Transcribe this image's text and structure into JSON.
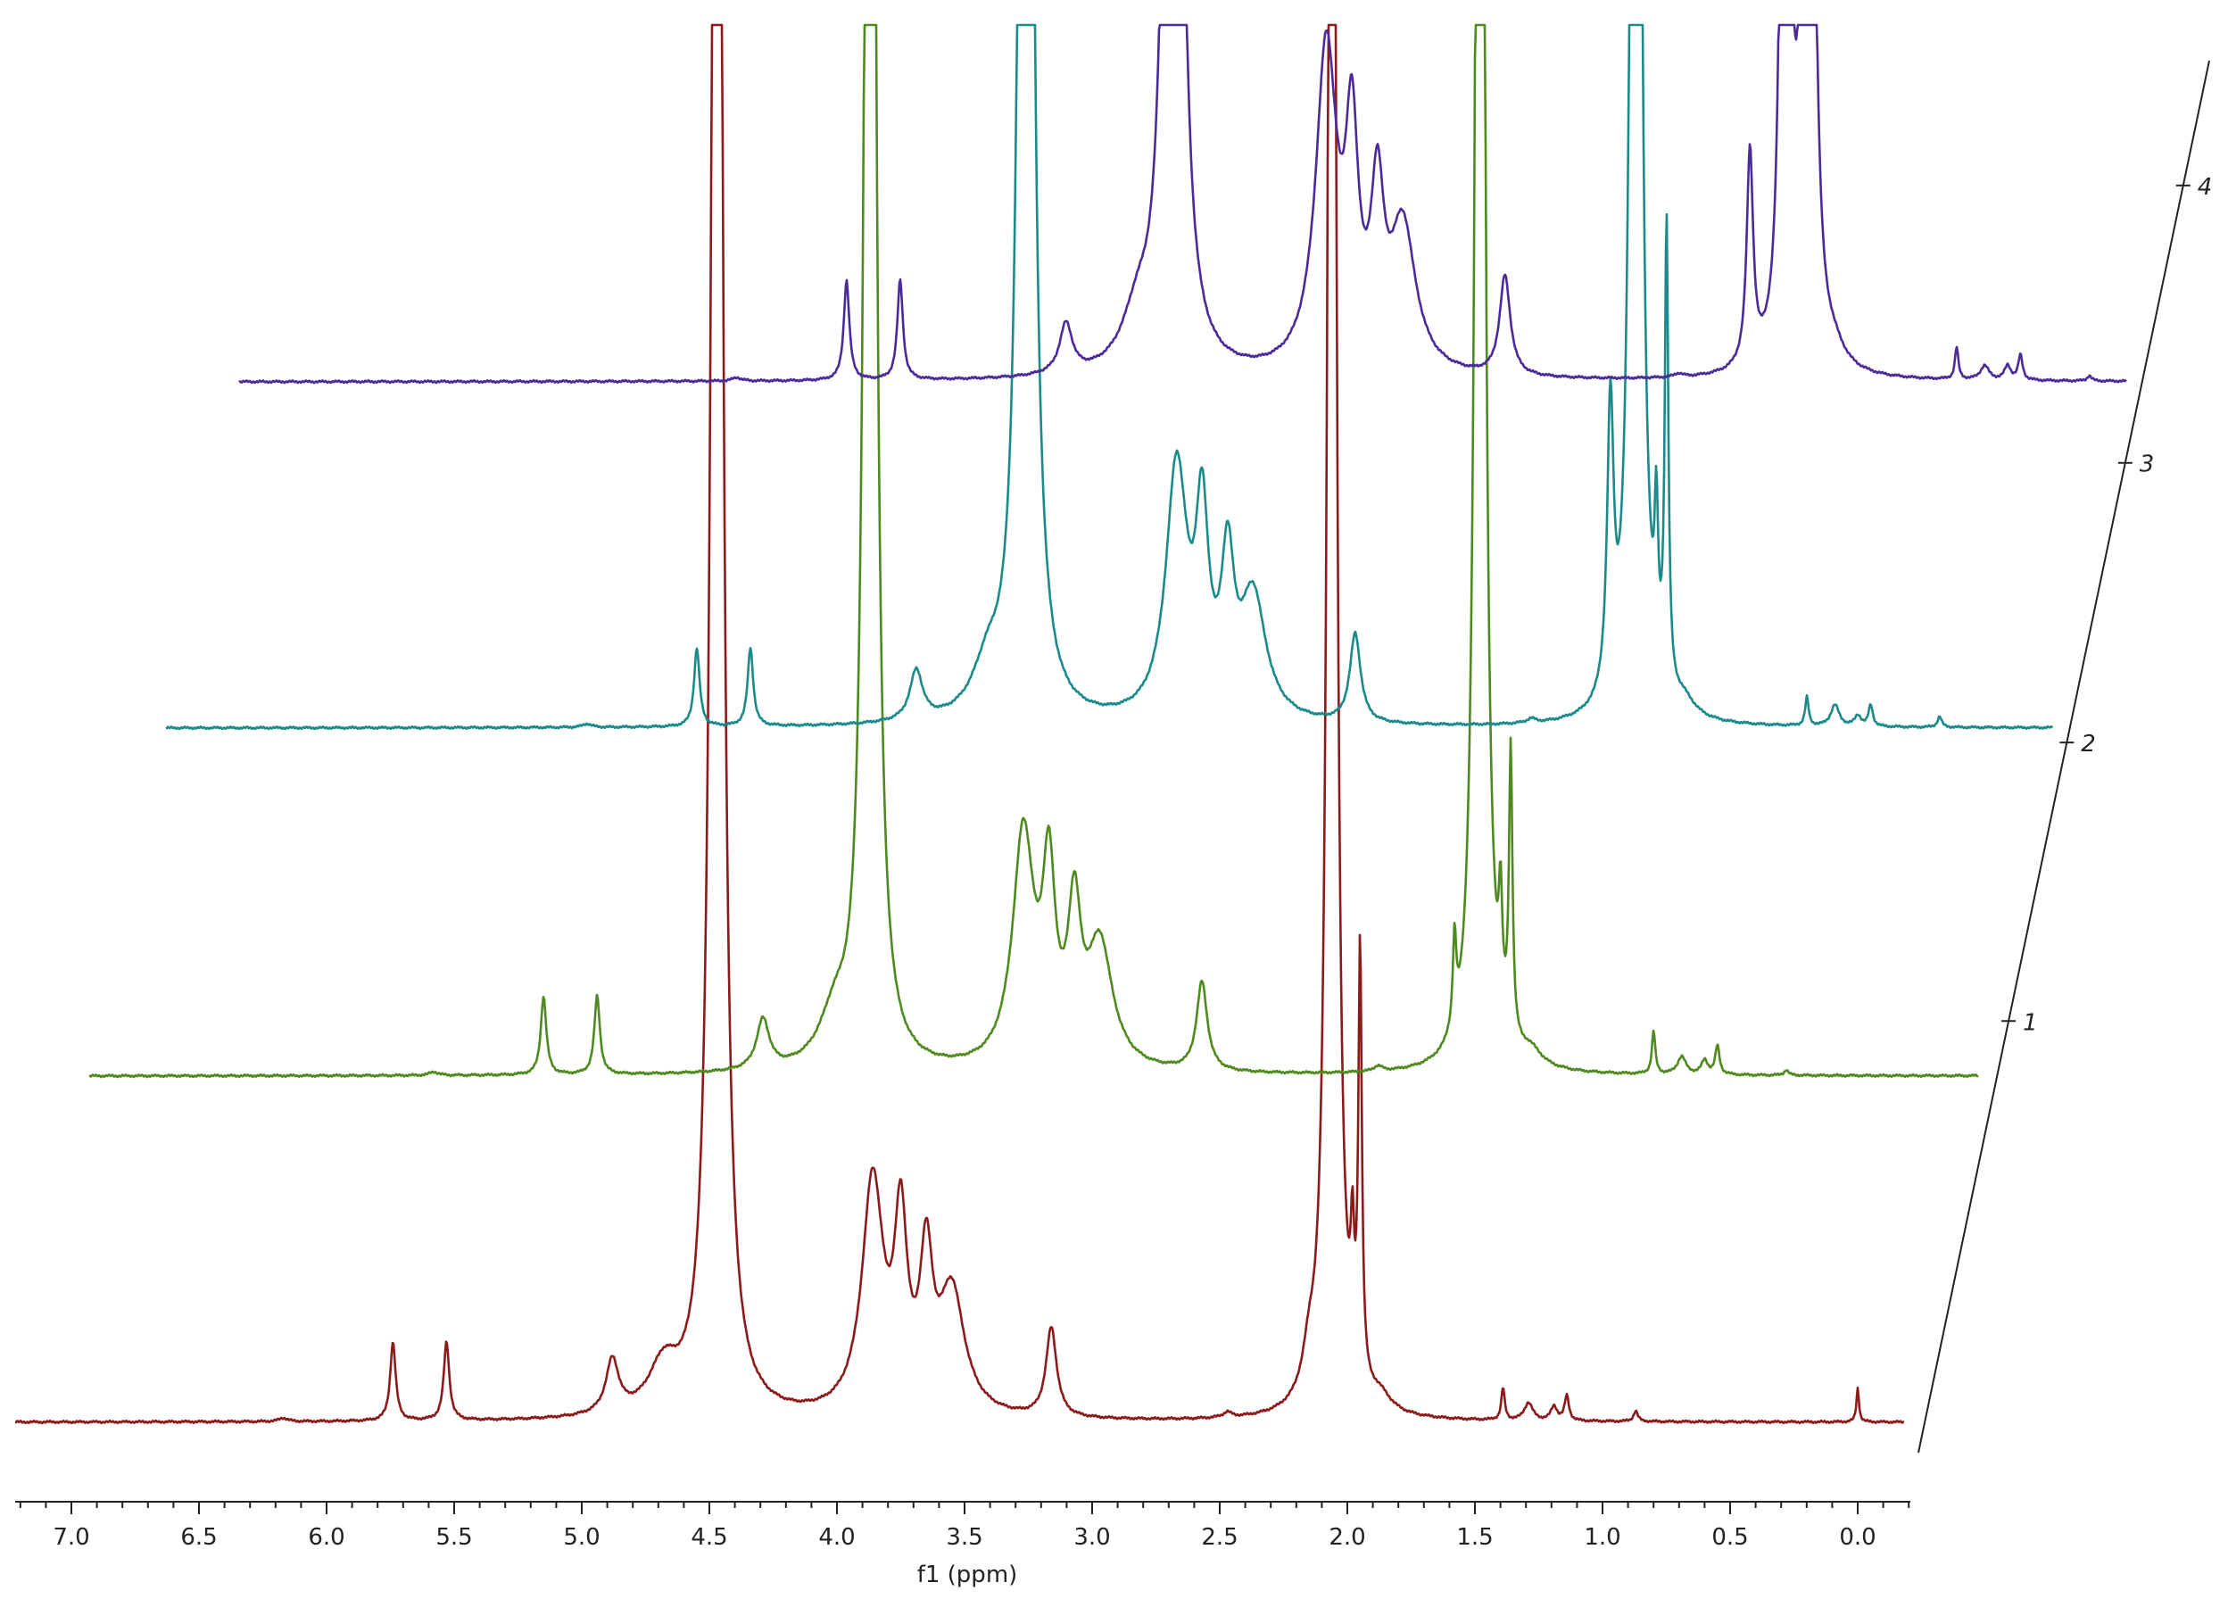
{
  "chart_data": {
    "type": "line",
    "subtype": "stacked-1H-NMR-spectra",
    "xlabel": "f1 (ppm)",
    "x_reversed": true,
    "xlim": [
      7.2,
      -0.2
    ],
    "x_ticks": [
      "7.0",
      "6.5",
      "6.0",
      "5.5",
      "5.0",
      "4.5",
      "4.0",
      "3.5",
      "3.0",
      "2.5",
      "2.0",
      "1.5",
      "1.0",
      "0.5",
      "0.0"
    ],
    "depth_axis_labels": [
      "1",
      "2",
      "3",
      "4"
    ],
    "grid": false,
    "legend": "none",
    "series": [
      {
        "color": "#8B1A1A",
        "peaks": [
          {
            "ppm": 6.17,
            "h": 0.1,
            "w": 0.02
          },
          {
            "ppm": 5.74,
            "h": 2.2,
            "w": 0.013
          },
          {
            "ppm": 5.53,
            "h": 2.2,
            "w": 0.013
          },
          {
            "ppm": 4.88,
            "h": 1.5,
            "w": 0.03
          },
          {
            "ppm": 4.68,
            "h": 1.3,
            "w": 0.07
          },
          {
            "ppm": 4.47,
            "h": 80,
            "w": 0.02
          },
          {
            "ppm": 3.86,
            "h": 6.5,
            "w": 0.05
          },
          {
            "ppm": 3.75,
            "h": 5.0,
            "w": 0.03
          },
          {
            "ppm": 3.65,
            "h": 4.0,
            "w": 0.03
          },
          {
            "ppm": 3.55,
            "h": 3.4,
            "w": 0.06
          },
          {
            "ppm": 3.16,
            "h": 2.5,
            "w": 0.025
          },
          {
            "ppm": 2.47,
            "h": 0.15,
            "w": 0.02
          },
          {
            "ppm": 2.15,
            "h": 1.0,
            "w": 0.03
          },
          {
            "ppm": 2.06,
            "h": 80,
            "w": 0.015
          },
          {
            "ppm": 1.98,
            "h": 3.0,
            "w": 0.008
          },
          {
            "ppm": 1.95,
            "h": 12,
            "w": 0.008
          },
          {
            "ppm": 1.87,
            "h": 0.4,
            "w": 0.05
          },
          {
            "ppm": 1.39,
            "h": 0.9,
            "w": 0.008
          },
          {
            "ppm": 1.29,
            "h": 0.5,
            "w": 0.02
          },
          {
            "ppm": 1.19,
            "h": 0.4,
            "w": 0.015
          },
          {
            "ppm": 1.14,
            "h": 0.7,
            "w": 0.01
          },
          {
            "ppm": 0.87,
            "h": 0.3,
            "w": 0.01
          },
          {
            "ppm": 0.0,
            "h": 0.95,
            "w": 0.006
          }
        ]
      },
      {
        "color": "#4E8A1E",
        "peaks": [
          {
            "ppm": 5.87,
            "h": 0.1,
            "w": 0.02
          },
          {
            "ppm": 5.44,
            "h": 2.2,
            "w": 0.013
          },
          {
            "ppm": 5.23,
            "h": 2.2,
            "w": 0.013
          },
          {
            "ppm": 4.58,
            "h": 1.4,
            "w": 0.03
          },
          {
            "ppm": 4.3,
            "h": 1.3,
            "w": 0.07
          },
          {
            "ppm": 4.16,
            "h": 80,
            "w": 0.018
          },
          {
            "ppm": 3.56,
            "h": 6.5,
            "w": 0.05
          },
          {
            "ppm": 3.46,
            "h": 5.0,
            "w": 0.03
          },
          {
            "ppm": 3.36,
            "h": 4.0,
            "w": 0.03
          },
          {
            "ppm": 3.26,
            "h": 3.4,
            "w": 0.06
          },
          {
            "ppm": 2.86,
            "h": 2.5,
            "w": 0.025
          },
          {
            "ppm": 2.17,
            "h": 0.15,
            "w": 0.02
          },
          {
            "ppm": 1.87,
            "h": 2.5,
            "w": 0.008
          },
          {
            "ppm": 1.77,
            "h": 80,
            "w": 0.015
          },
          {
            "ppm": 1.69,
            "h": 3.0,
            "w": 0.008
          },
          {
            "ppm": 1.65,
            "h": 8,
            "w": 0.008
          },
          {
            "ppm": 1.57,
            "h": 0.4,
            "w": 0.05
          },
          {
            "ppm": 1.09,
            "h": 1.2,
            "w": 0.008
          },
          {
            "ppm": 0.98,
            "h": 0.5,
            "w": 0.02
          },
          {
            "ppm": 0.89,
            "h": 0.4,
            "w": 0.015
          },
          {
            "ppm": 0.84,
            "h": 0.8,
            "w": 0.01
          },
          {
            "ppm": 0.57,
            "h": 0.15,
            "w": 0.01
          },
          {
            "ppm": -0.29,
            "h": 1.3,
            "w": 0.006
          }
        ]
      },
      {
        "color": "#1A8A8A",
        "peaks": [
          {
            "ppm": 5.57,
            "h": 0.1,
            "w": 0.02
          },
          {
            "ppm": 5.14,
            "h": 2.2,
            "w": 0.013
          },
          {
            "ppm": 4.93,
            "h": 2.2,
            "w": 0.013
          },
          {
            "ppm": 4.28,
            "h": 1.4,
            "w": 0.03
          },
          {
            "ppm": 4.0,
            "h": 1.3,
            "w": 0.07
          },
          {
            "ppm": 3.85,
            "h": 80,
            "w": 0.02
          },
          {
            "ppm": 3.26,
            "h": 7.0,
            "w": 0.05
          },
          {
            "ppm": 3.16,
            "h": 5.2,
            "w": 0.03
          },
          {
            "ppm": 3.06,
            "h": 4.0,
            "w": 0.03
          },
          {
            "ppm": 2.96,
            "h": 3.4,
            "w": 0.06
          },
          {
            "ppm": 2.56,
            "h": 2.5,
            "w": 0.025
          },
          {
            "ppm": 1.87,
            "h": 0.12,
            "w": 0.02
          },
          {
            "ppm": 1.56,
            "h": 8,
            "w": 0.015
          },
          {
            "ppm": 1.46,
            "h": 80,
            "w": 0.015
          },
          {
            "ppm": 1.38,
            "h": 4.0,
            "w": 0.008
          },
          {
            "ppm": 1.34,
            "h": 13,
            "w": 0.008
          },
          {
            "ppm": 1.27,
            "h": 0.4,
            "w": 0.05
          },
          {
            "ppm": 0.79,
            "h": 0.8,
            "w": 0.008
          },
          {
            "ppm": 0.68,
            "h": 0.6,
            "w": 0.02
          },
          {
            "ppm": 0.59,
            "h": 0.3,
            "w": 0.015
          },
          {
            "ppm": 0.54,
            "h": 0.6,
            "w": 0.01
          },
          {
            "ppm": 0.27,
            "h": 0.3,
            "w": 0.01
          },
          {
            "ppm": -0.59,
            "h": 1.1,
            "w": 0.006
          }
        ]
      },
      {
        "color": "#4B2A9A",
        "peaks": [
          {
            "ppm": 5.27,
            "h": 0.1,
            "w": 0.02
          },
          {
            "ppm": 4.84,
            "h": 2.8,
            "w": 0.013
          },
          {
            "ppm": 4.63,
            "h": 2.8,
            "w": 0.013
          },
          {
            "ppm": 3.98,
            "h": 1.4,
            "w": 0.03
          },
          {
            "ppm": 3.7,
            "h": 1.4,
            "w": 0.07
          },
          {
            "ppm": 3.56,
            "h": 80,
            "w": 0.02
          },
          {
            "ppm": 2.96,
            "h": 9.0,
            "w": 0.05
          },
          {
            "ppm": 2.86,
            "h": 6.0,
            "w": 0.03
          },
          {
            "ppm": 2.76,
            "h": 4.5,
            "w": 0.03
          },
          {
            "ppm": 2.66,
            "h": 4.0,
            "w": 0.06
          },
          {
            "ppm": 2.26,
            "h": 2.8,
            "w": 0.025
          },
          {
            "ppm": 1.58,
            "h": 0.1,
            "w": 0.02
          },
          {
            "ppm": 1.3,
            "h": 6,
            "w": 0.015
          },
          {
            "ppm": 1.16,
            "h": 80,
            "w": 0.01
          },
          {
            "ppm": 1.07,
            "h": 80,
            "w": 0.012
          },
          {
            "ppm": 1.1,
            "h": 5.0,
            "w": 0.006
          },
          {
            "ppm": 0.97,
            "h": 0.4,
            "w": 0.05
          },
          {
            "ppm": 0.49,
            "h": 0.9,
            "w": 0.008
          },
          {
            "ppm": 0.38,
            "h": 0.4,
            "w": 0.02
          },
          {
            "ppm": 0.29,
            "h": 0.4,
            "w": 0.015
          },
          {
            "ppm": 0.24,
            "h": 0.7,
            "w": 0.01
          },
          {
            "ppm": -0.03,
            "h": 0.15,
            "w": 0.01
          },
          {
            "ppm": -0.89,
            "h": 1.6,
            "w": 0.006
          }
        ]
      }
    ]
  }
}
